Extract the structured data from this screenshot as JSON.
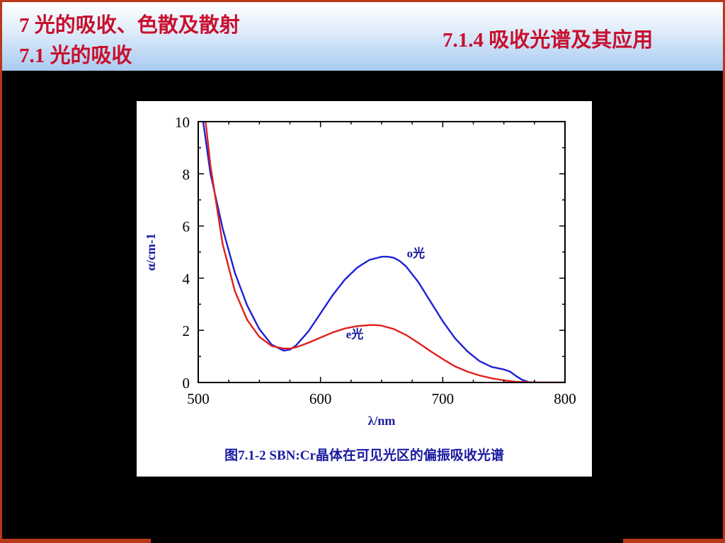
{
  "slide": {
    "chapter_title": "7 光的吸收、色散及散射",
    "section_title": "7.1 光的吸收",
    "subsection_title": "7.1.4 吸收光谱及其应用",
    "caption": "图7.1-2 SBN:Cr晶体在可见光区的偏振吸收光谱",
    "colors": {
      "title": "#c8102e",
      "frame": "#b8391a",
      "caption": "#1a1aa0"
    }
  },
  "chart_data": {
    "type": "line",
    "xlabel": "λ/nm",
    "ylabel": "α/cm-1",
    "xlim": [
      500,
      800
    ],
    "ylim": [
      0,
      10
    ],
    "x_ticks": [
      500,
      600,
      700,
      800
    ],
    "y_ticks": [
      0,
      2,
      4,
      6,
      8,
      10
    ],
    "grid": false,
    "series": [
      {
        "name": "o光",
        "color": "#1f1fd6",
        "x": [
          504,
          510,
          520,
          530,
          540,
          550,
          560,
          570,
          575,
          580,
          590,
          600,
          610,
          620,
          630,
          640,
          650,
          655,
          660,
          665,
          670,
          680,
          690,
          700,
          710,
          720,
          730,
          740,
          750,
          755,
          760,
          765,
          770,
          775,
          780,
          790,
          800
        ],
        "y": [
          10.0,
          8.0,
          5.9,
          4.2,
          2.95,
          2.05,
          1.45,
          1.22,
          1.26,
          1.42,
          1.95,
          2.65,
          3.35,
          3.95,
          4.4,
          4.7,
          4.82,
          4.82,
          4.78,
          4.65,
          4.45,
          3.85,
          3.1,
          2.35,
          1.7,
          1.2,
          0.82,
          0.6,
          0.5,
          0.42,
          0.25,
          0.1,
          0.02,
          0.0,
          0.0,
          0.0,
          0.0
        ]
      },
      {
        "name": "e光",
        "color": "#e0201a",
        "x": [
          506,
          510,
          520,
          530,
          540,
          550,
          560,
          570,
          575,
          580,
          590,
          600,
          610,
          620,
          630,
          640,
          645,
          650,
          660,
          670,
          680,
          690,
          700,
          710,
          720,
          730,
          740,
          750,
          760,
          770,
          780,
          790,
          800
        ],
        "y": [
          10.0,
          8.3,
          5.3,
          3.5,
          2.4,
          1.75,
          1.4,
          1.3,
          1.3,
          1.35,
          1.52,
          1.72,
          1.92,
          2.07,
          2.16,
          2.2,
          2.2,
          2.18,
          2.05,
          1.82,
          1.52,
          1.2,
          0.9,
          0.62,
          0.42,
          0.27,
          0.16,
          0.08,
          0.03,
          0.01,
          0.0,
          0.0,
          0.0
        ]
      }
    ],
    "annotations": [
      {
        "text": "o光",
        "x": 678,
        "y": 4.8,
        "color": "#1a1aa0"
      },
      {
        "text": "e光",
        "x": 628,
        "y": 1.7,
        "color": "#1a1aa0"
      }
    ]
  }
}
